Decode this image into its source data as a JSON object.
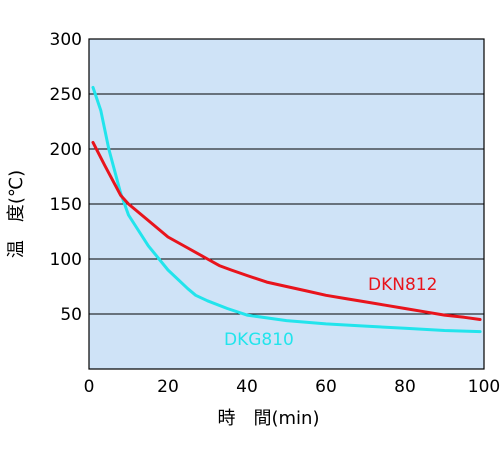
{
  "chart_data": {
    "type": "line",
    "title": "",
    "xlabel": "時　間(min)",
    "ylabel": "温　度(℃)",
    "xlim": [
      0,
      100
    ],
    "ylim": [
      0,
      300
    ],
    "x_ticks": [
      "0",
      "20",
      "40",
      "60",
      "80",
      "100"
    ],
    "y_ticks": [
      "50",
      "100",
      "150",
      "200",
      "250",
      "300"
    ],
    "grid": "horizontal",
    "background": "#cfe3f7",
    "series": [
      {
        "name": "DKN812",
        "color": "#e8141c",
        "x": [
          1,
          4,
          8,
          10,
          15,
          20,
          25,
          30,
          33,
          36,
          40,
          45,
          50,
          55,
          60,
          65,
          70,
          75,
          80,
          85,
          90,
          95,
          99
        ],
        "y": [
          206,
          185,
          158,
          150,
          135,
          120,
          110,
          100,
          94,
          90,
          85,
          79,
          75,
          71,
          67,
          64,
          61,
          58,
          55,
          52,
          49,
          47,
          45
        ]
      },
      {
        "name": "DKG810",
        "color": "#22e4ec",
        "x": [
          1,
          3,
          5,
          8,
          10,
          15,
          20,
          25,
          27,
          30,
          35,
          40,
          50,
          60,
          70,
          80,
          90,
          99
        ],
        "y": [
          256,
          235,
          200,
          160,
          140,
          112,
          90,
          73,
          67,
          62,
          55,
          49,
          44,
          41,
          39,
          37,
          35,
          34
        ]
      }
    ]
  }
}
